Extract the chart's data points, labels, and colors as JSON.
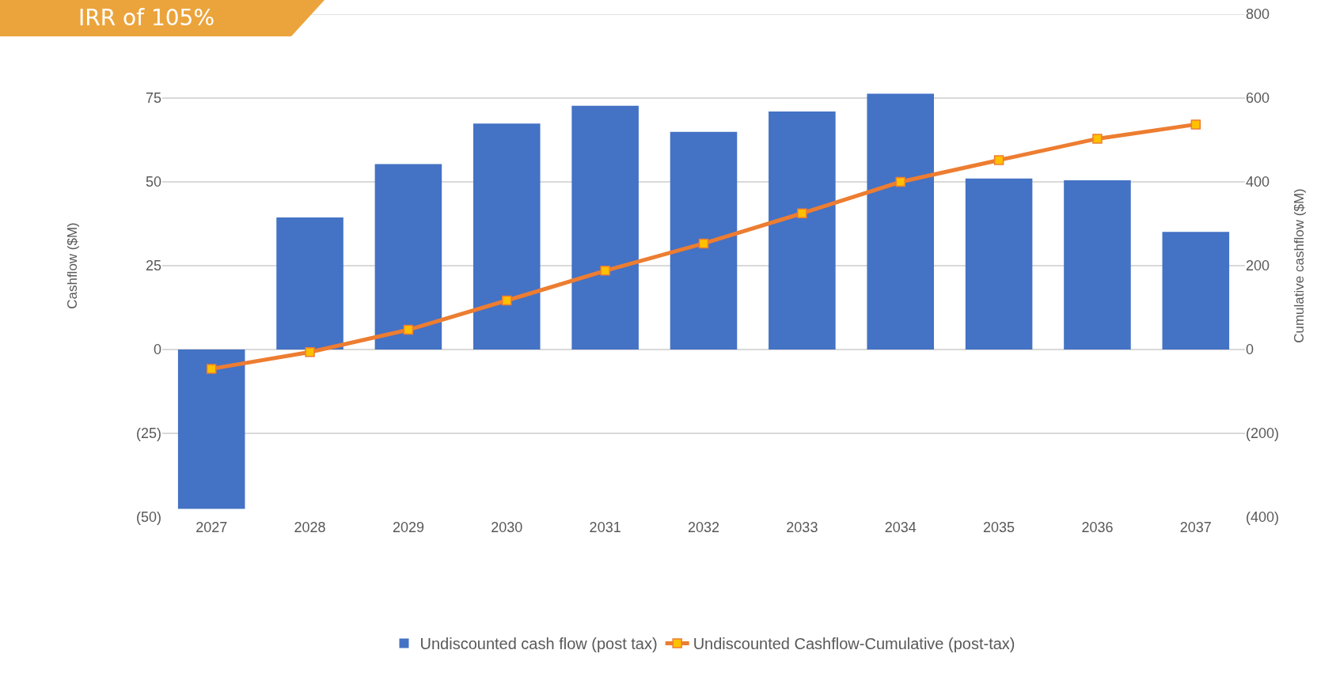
{
  "chart_data": {
    "type": "bar",
    "annotations": [
      "IRR of 105%"
    ],
    "categories": [
      "2027",
      "2028",
      "2029",
      "2030",
      "2031",
      "2032",
      "2033",
      "2034",
      "2035",
      "2036",
      "2037"
    ],
    "series": [
      {
        "name": "Undiscounted cash flow (post tax)",
        "color": "#4472c4",
        "values": [
          -47.5,
          39.4,
          55.3,
          67.4,
          72.7,
          64.9,
          71.0,
          76.3,
          51.0,
          50.5,
          35.1
        ]
      },
      {
        "name": "Undiscounted Cashflow-Cumulative (post-tax)",
        "type": "line",
        "axis": "y2",
        "color": "#ed7d31",
        "marker": "square",
        "values": [
          -46,
          -6,
          47,
          117,
          188,
          253,
          325,
          400,
          452,
          503,
          537
        ]
      }
    ],
    "ylabel": "Cashflow ($M)",
    "y2label": "Cumulative cashflow ($M)",
    "ylim": [
      -50,
      100
    ],
    "yticks": [
      {
        "value": -50,
        "label": "(50)"
      },
      {
        "value": -25,
        "label": "(25)"
      },
      0,
      25,
      50,
      75,
      {
        "value": 100,
        "label": null
      }
    ],
    "y2lim": [
      -400,
      800
    ],
    "y2ticks": [
      {
        "value": -400,
        "label": "(400)"
      },
      {
        "value": -200,
        "label": "(200)"
      },
      0,
      200,
      400,
      600,
      800
    ],
    "grid": "y",
    "legend": "bottom"
  }
}
